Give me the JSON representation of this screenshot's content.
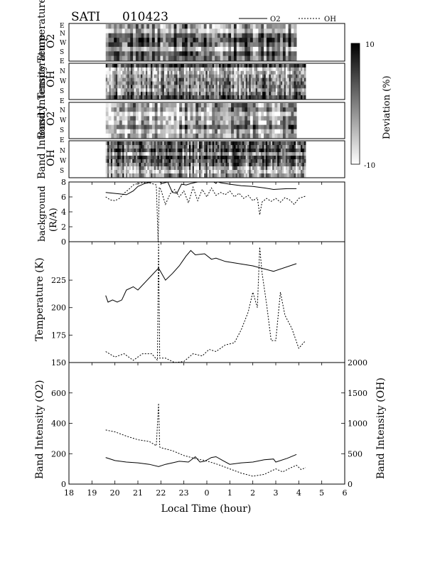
{
  "header": {
    "instrument": "SATI",
    "date_code": "010423",
    "legend": [
      {
        "label": "O2",
        "style": "solid"
      },
      {
        "label": "OH",
        "style": "dashed"
      }
    ]
  },
  "colorbar": {
    "label": "Deviation (%)",
    "max_label": "10",
    "min_label": "-10",
    "colors": [
      "#000000",
      "#ffffff"
    ]
  },
  "keogram_panels": [
    {
      "line1": "Temperature",
      "line2": "O2",
      "directions": [
        "E",
        "N",
        "W",
        "S"
      ],
      "bottom_dir": "E"
    },
    {
      "line1": "Temperature",
      "line2": "OH",
      "directions": [
        "N",
        "W",
        "S"
      ],
      "bottom_dir": "E"
    },
    {
      "line1": "Band Intensity",
      "line2": "O2",
      "directions": [
        "N",
        "W",
        "S"
      ],
      "bottom_dir": "E"
    },
    {
      "line1": "Band Intensity",
      "line2": "OH",
      "directions": [
        "N",
        "W",
        "S"
      ],
      "bottom_dir": ""
    }
  ],
  "axes": {
    "x_label": "Local Time (hour)",
    "x_ticks": [
      "18",
      "19",
      "20",
      "21",
      "22",
      "23",
      "0",
      "1",
      "2",
      "3",
      "4",
      "5",
      "6"
    ],
    "background": {
      "line1": "background",
      "line2": "(R/A)",
      "ylim": [
        0,
        8
      ],
      "ticks": [
        "0",
        "2",
        "4",
        "6",
        "8"
      ]
    },
    "temperature": {
      "label": "Temperature (K)",
      "ylim": [
        150,
        260
      ],
      "ticks": [
        "150",
        "175",
        "200",
        "225"
      ]
    },
    "intensity": {
      "left_label": "Band Intensity (O2)",
      "left_ylim": [
        0,
        800
      ],
      "left_ticks": [
        "0",
        "200",
        "400",
        "600"
      ],
      "right_label": "Band Intensity (OH)",
      "right_ylim": [
        0,
        2000
      ],
      "right_ticks": [
        "0",
        "500",
        "1000",
        "1500",
        "2000"
      ]
    }
  },
  "chart_data": [
    {
      "type": "heatmap",
      "title": "Temperature O2 keogram",
      "note": "grayscale deviation (%) by sky direction vs local time",
      "x_range": [
        19.6,
        27.9
      ],
      "value_range": [
        -10,
        10
      ],
      "directions": [
        "E",
        "N",
        "W",
        "S"
      ]
    },
    {
      "type": "heatmap",
      "title": "Temperature OH keogram",
      "x_range": [
        19.6,
        28.3
      ],
      "value_range": [
        -10,
        10
      ],
      "directions": [
        "N",
        "W",
        "S"
      ]
    },
    {
      "type": "heatmap",
      "title": "Band Intensity O2 keogram",
      "x_range": [
        19.6,
        27.9
      ],
      "value_range": [
        -10,
        10
      ],
      "directions": [
        "N",
        "W",
        "S"
      ]
    },
    {
      "type": "heatmap",
      "title": "Band Intensity OH keogram",
      "x_range": [
        19.6,
        28.3
      ],
      "value_range": [
        -10,
        10
      ],
      "directions": [
        "N",
        "W",
        "S"
      ]
    },
    {
      "type": "line",
      "title": "background (R/A)",
      "ylim": [
        0,
        8
      ],
      "series": [
        {
          "name": "O2",
          "style": "solid",
          "x": [
            19.6,
            19.9,
            20.2,
            20.5,
            20.8,
            21.0,
            21.3,
            21.6,
            21.8,
            21.95,
            22.05,
            22.3,
            22.5,
            22.7,
            22.9,
            23.1,
            23.3,
            23.6,
            24.0,
            24.3,
            24.4,
            24.45,
            24.5,
            24.6,
            25.0,
            25.5,
            26.0,
            26.5,
            26.9,
            27.5,
            27.9
          ],
          "y": [
            6.6,
            6.5,
            6.4,
            6.3,
            6.8,
            7.4,
            7.8,
            8.0,
            8.0,
            8.0,
            7.8,
            8.0,
            6.6,
            6.5,
            7.7,
            7.6,
            7.8,
            8.0,
            8.0,
            8.0,
            7.8,
            8.0,
            8.0,
            7.9,
            7.7,
            7.5,
            7.4,
            7.2,
            7.0,
            7.1,
            7.1
          ]
        },
        {
          "name": "OH",
          "style": "dashed",
          "x": [
            19.6,
            19.8,
            20.0,
            20.2,
            20.4,
            20.6,
            20.8,
            21.0,
            21.2,
            21.4,
            21.6,
            21.8,
            21.88,
            21.93,
            22.0,
            22.2,
            22.4,
            22.6,
            22.8,
            23.0,
            23.2,
            23.4,
            23.6,
            23.8,
            24.0,
            24.2,
            24.4,
            24.6,
            24.8,
            25.0,
            25.2,
            25.4,
            25.6,
            25.8,
            26.0,
            26.2,
            26.3,
            26.4,
            26.6,
            26.8,
            27.0,
            27.2,
            27.4,
            27.6,
            27.8,
            28.0,
            28.3
          ],
          "y": [
            6.0,
            5.6,
            5.5,
            5.8,
            6.5,
            7.0,
            7.6,
            7.8,
            7.9,
            7.9,
            7.8,
            7.6,
            0.0,
            7.3,
            7.0,
            5.0,
            6.4,
            7.0,
            6.0,
            6.8,
            5.2,
            7.3,
            5.5,
            7.0,
            6.0,
            7.2,
            6.2,
            6.6,
            6.3,
            6.8,
            6.0,
            6.5,
            5.8,
            6.2,
            5.5,
            5.9,
            3.6,
            5.3,
            5.8,
            5.4,
            5.8,
            5.3,
            5.9,
            5.6,
            5.0,
            5.8,
            6.1
          ]
        }
      ]
    },
    {
      "type": "line",
      "title": "Temperature (K)",
      "ylim": [
        150,
        260
      ],
      "series": [
        {
          "name": "O2",
          "style": "solid",
          "x": [
            19.6,
            19.7,
            19.9,
            20.1,
            20.3,
            20.5,
            20.8,
            21.0,
            21.9,
            22.2,
            22.5,
            22.8,
            23.1,
            23.3,
            23.5,
            23.9,
            24.2,
            24.4,
            24.8,
            26.0,
            26.9,
            27.9
          ],
          "y": [
            211,
            205,
            207,
            205,
            207,
            216,
            219,
            216,
            236,
            225,
            231,
            238,
            247,
            252,
            248,
            249,
            244,
            245,
            242,
            238,
            233,
            240
          ]
        },
        {
          "name": "OH",
          "style": "dashed",
          "x": [
            19.6,
            20.0,
            20.4,
            20.8,
            21.2,
            21.6,
            21.85,
            21.9,
            21.95,
            22.2,
            22.6,
            23.0,
            23.4,
            23.8,
            24.1,
            24.4,
            24.8,
            25.2,
            25.5,
            25.8,
            26.0,
            26.2,
            26.3,
            26.4,
            26.6,
            26.8,
            27.0,
            27.2,
            27.4,
            27.7,
            28.0,
            28.3
          ],
          "y": [
            160,
            155,
            158,
            152,
            158,
            158,
            152,
            260,
            154,
            154,
            150,
            151,
            158,
            156,
            162,
            160,
            166,
            168,
            180,
            196,
            214,
            200,
            255,
            232,
            203,
            170,
            170,
            214,
            193,
            181,
            163,
            170
          ]
        }
      ]
    },
    {
      "type": "line",
      "title": "Band Intensity",
      "series": [
        {
          "name": "O2",
          "style": "solid",
          "axis": "left",
          "x": [
            19.6,
            20.0,
            20.5,
            21.0,
            21.5,
            21.9,
            22.2,
            22.5,
            22.8,
            23.2,
            23.5,
            23.7,
            23.9,
            24.2,
            24.4,
            24.7,
            25.0,
            25.5,
            26.0,
            26.5,
            26.9,
            27.0,
            27.5,
            27.9
          ],
          "y": [
            175,
            155,
            145,
            140,
            130,
            115,
            130,
            140,
            150,
            145,
            180,
            145,
            150,
            175,
            180,
            155,
            130,
            140,
            145,
            160,
            165,
            145,
            170,
            195
          ]
        },
        {
          "name": "OH",
          "style": "dashed",
          "axis": "right",
          "x": [
            19.6,
            20.0,
            20.5,
            21.0,
            21.5,
            21.8,
            21.9,
            21.95,
            22.0,
            22.5,
            23.0,
            23.5,
            24.0,
            24.5,
            25.0,
            25.5,
            26.0,
            26.5,
            27.0,
            27.3,
            27.6,
            27.9,
            28.1,
            28.3
          ],
          "y": [
            890,
            860,
            790,
            730,
            700,
            630,
            1330,
            610,
            600,
            550,
            470,
            420,
            380,
            320,
            250,
            180,
            130,
            160,
            250,
            200,
            260,
            310,
            240,
            270
          ]
        }
      ]
    }
  ]
}
